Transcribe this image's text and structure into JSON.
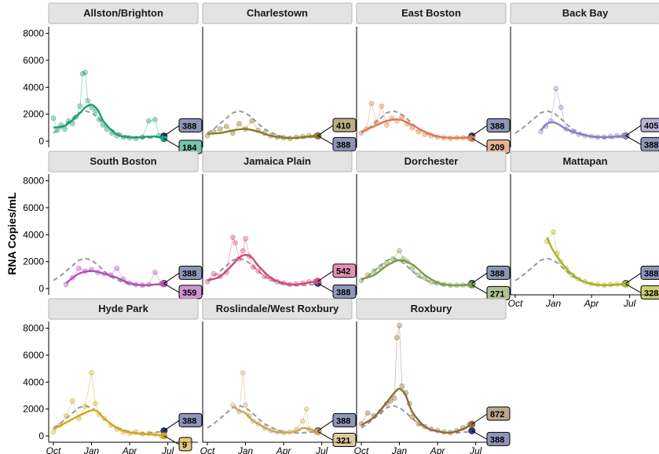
{
  "chart_data": {
    "type": "line",
    "ylabel": "RNA Copies/mL",
    "xlabel": "",
    "x_tick_labels": [
      "Oct",
      "Jan",
      "Apr",
      "Jul"
    ],
    "x_tick_months": [
      0,
      3,
      6,
      9
    ],
    "xlim_months": [
      0,
      11
    ],
    "y_ticks": [
      0,
      2000,
      4000,
      6000,
      8000
    ],
    "ylim": [
      0,
      8500
    ],
    "reference_series": {
      "style": "dashed",
      "color": "#999999",
      "x_months": [
        0,
        0.5,
        1,
        1.5,
        2,
        2.5,
        3,
        3.5,
        4,
        4.5,
        5,
        5.5,
        6,
        6.5,
        7,
        7.5,
        8,
        8.5,
        9
      ],
      "values": [
        600,
        900,
        1300,
        1700,
        2100,
        2250,
        2100,
        1750,
        1300,
        900,
        650,
        450,
        320,
        250,
        220,
        240,
        270,
        320,
        388
      ]
    },
    "panels": [
      {
        "name": "Allston/Brighton",
        "color": "#1b9e77",
        "smooth_x": [
          0,
          1,
          2,
          2.5,
          3,
          3.5,
          4,
          5,
          6,
          7,
          8,
          8.7
        ],
        "smooth_y": [
          1000,
          1200,
          2000,
          2500,
          2700,
          2300,
          1400,
          500,
          280,
          300,
          350,
          184
        ],
        "obs_x": [
          0,
          0.3,
          0.6,
          0.9,
          1.2,
          1.5,
          1.8,
          2.1,
          2.3,
          2.5,
          2.7,
          3,
          3.3,
          3.6,
          3.9,
          4.2,
          4.6,
          5,
          5.5,
          6,
          6.5,
          7,
          7.5,
          8,
          8.3,
          8.7
        ],
        "obs_y": [
          1700,
          800,
          1200,
          900,
          1500,
          1300,
          1800,
          2600,
          5000,
          5100,
          3000,
          2500,
          2200,
          1600,
          1200,
          900,
          600,
          400,
          300,
          250,
          200,
          300,
          1500,
          1600,
          400,
          184
        ],
        "last_value_label": "184",
        "reference_label": "388",
        "end_color": "#1b9e77"
      },
      {
        "name": "Charlestown",
        "color": "#8c7a2a",
        "smooth_x": [
          0,
          1,
          2,
          3,
          4,
          5,
          6,
          7,
          8,
          8.7
        ],
        "smooth_y": [
          550,
          600,
          800,
          900,
          700,
          400,
          250,
          250,
          350,
          410
        ],
        "obs_x": [
          0,
          0.5,
          1,
          1.5,
          2,
          2.5,
          3,
          3.5,
          4,
          4.5,
          5,
          5.5,
          6,
          6.5,
          7,
          7.5,
          8,
          8.5
        ],
        "obs_y": [
          400,
          700,
          900,
          1100,
          600,
          1300,
          900,
          1500,
          800,
          600,
          400,
          300,
          250,
          200,
          300,
          350,
          400,
          410
        ],
        "last_value_label": "410",
        "reference_label": "388",
        "end_color": "#8c7a2a"
      },
      {
        "name": "East Boston",
        "color": "#d97c4c",
        "smooth_x": [
          0,
          1,
          2,
          3,
          4,
          5,
          6,
          7,
          8,
          8.7
        ],
        "smooth_y": [
          700,
          1100,
          1500,
          1600,
          1200,
          700,
          350,
          250,
          250,
          209
        ],
        "obs_x": [
          0,
          0.4,
          0.8,
          1.2,
          1.6,
          2,
          2.4,
          2.8,
          3.2,
          3.6,
          4,
          4.5,
          5,
          5.5,
          6,
          6.5,
          7,
          7.5,
          8,
          8.5
        ],
        "obs_y": [
          600,
          900,
          2800,
          1400,
          2600,
          1200,
          1700,
          1500,
          1800,
          1300,
          1000,
          700,
          500,
          400,
          300,
          250,
          200,
          250,
          250,
          209
        ],
        "last_value_label": "209",
        "reference_label": "388",
        "end_color": "#d97c4c"
      },
      {
        "name": "Back Bay",
        "color": "#8a7fc0",
        "smooth_x": [
          2,
          2.5,
          3,
          3.5,
          4,
          5,
          6,
          7,
          8,
          8.7
        ],
        "smooth_y": [
          800,
          1300,
          1400,
          1200,
          900,
          550,
          350,
          300,
          350,
          405
        ],
        "obs_x": [
          2,
          2.4,
          2.8,
          3.2,
          3.6,
          4,
          4.5,
          5,
          5.5,
          6,
          6.5,
          7,
          7.5,
          8,
          8.5
        ],
        "obs_y": [
          700,
          1100,
          1500,
          3900,
          2500,
          900,
          700,
          500,
          400,
          350,
          300,
          300,
          350,
          400,
          405
        ],
        "last_value_label": "405",
        "reference_label": "388",
        "end_color": "#8a7fc0"
      },
      {
        "name": "South Boston",
        "color": "#b34fb5",
        "smooth_x": [
          1,
          2,
          3,
          4,
          5,
          6,
          7,
          8,
          8.7
        ],
        "smooth_y": [
          400,
          1100,
          1300,
          1100,
          800,
          400,
          250,
          300,
          359
        ],
        "obs_x": [
          1,
          1.5,
          2,
          2.5,
          3,
          3.5,
          4,
          4.5,
          5,
          5.5,
          6,
          6.5,
          7,
          7.5,
          8,
          8.5
        ],
        "obs_y": [
          300,
          800,
          1500,
          1300,
          1400,
          1200,
          1100,
          1000,
          1500,
          700,
          400,
          300,
          250,
          300,
          1200,
          359
        ],
        "last_value_label": "359",
        "reference_label": "388",
        "end_color": "#b34fb5"
      },
      {
        "name": "Jamaica Plain",
        "color": "#d1477f",
        "smooth_x": [
          0,
          1,
          2,
          2.5,
          3,
          3.5,
          4,
          5,
          6,
          7,
          8,
          8.7
        ],
        "smooth_y": [
          600,
          900,
          1800,
          2300,
          2500,
          2300,
          1700,
          800,
          400,
          300,
          450,
          542
        ],
        "obs_x": [
          0,
          0.5,
          1,
          1.5,
          2,
          2.2,
          2.5,
          2.8,
          3,
          3.3,
          3.6,
          4,
          4.5,
          5,
          5.5,
          6,
          6.5,
          7,
          7.5,
          8,
          8.5
        ],
        "obs_y": [
          500,
          1100,
          900,
          1200,
          3800,
          3400,
          2200,
          2800,
          3700,
          2400,
          1600,
          1300,
          900,
          700,
          500,
          400,
          300,
          350,
          400,
          500,
          542
        ],
        "last_value_label": "542",
        "reference_label": "388",
        "end_color": "#d1477f"
      },
      {
        "name": "Dorchester",
        "color": "#7a9a4a",
        "smooth_x": [
          0,
          1,
          2,
          3,
          4,
          5,
          6,
          7,
          8,
          8.7
        ],
        "smooth_y": [
          700,
          1000,
          1700,
          2100,
          1800,
          1000,
          450,
          250,
          250,
          271
        ],
        "obs_x": [
          0,
          0.5,
          1,
          1.5,
          2,
          2.5,
          3,
          3.3,
          3.6,
          4,
          4.5,
          5,
          5.5,
          6,
          6.5,
          7,
          7.5,
          8,
          8.5
        ],
        "obs_y": [
          600,
          1000,
          1300,
          1600,
          1900,
          2200,
          2800,
          2200,
          2000,
          1500,
          1000,
          800,
          500,
          400,
          300,
          250,
          250,
          260,
          271
        ],
        "last_value_label": "271",
        "reference_label": "388",
        "end_color": "#7a9a4a"
      },
      {
        "name": "Mattapan",
        "color": "#a8b320",
        "smooth_x": [
          2.5,
          3,
          4,
          5,
          6,
          7,
          8,
          8.7
        ],
        "smooth_y": [
          3800,
          2800,
          1500,
          700,
          350,
          250,
          300,
          328
        ],
        "obs_x": [
          2.5,
          3,
          3.3,
          3.6,
          4,
          4.5,
          5,
          5.5,
          6,
          6.5,
          7,
          7.5,
          8,
          8.5
        ],
        "obs_y": [
          3500,
          4200,
          2600,
          2000,
          1500,
          1000,
          700,
          500,
          350,
          300,
          250,
          300,
          320,
          328
        ],
        "last_value_label": "328",
        "reference_label": "388",
        "end_color": "#a8b320"
      },
      {
        "name": "Hyde Park",
        "color": "#d4a520",
        "smooth_x": [
          0,
          1,
          2,
          3,
          3.5,
          4,
          5,
          6,
          7,
          8,
          8.7
        ],
        "smooth_y": [
          500,
          1000,
          1500,
          1900,
          1800,
          1300,
          600,
          250,
          150,
          100,
          9
        ],
        "obs_x": [
          0,
          0.5,
          1,
          1.5,
          2,
          2.5,
          3,
          3.3,
          3.6,
          4,
          4.5,
          5,
          5.5,
          6,
          6.5,
          7,
          7.5,
          8,
          8.5
        ],
        "obs_y": [
          300,
          800,
          1500,
          2600,
          1300,
          2200,
          4700,
          2400,
          1600,
          1300,
          800,
          500,
          300,
          200,
          300,
          150,
          200,
          100,
          9
        ],
        "last_value_label": "9",
        "reference_label": "388",
        "end_color": "#d4a520"
      },
      {
        "name": "Roslindale/West Roxbury",
        "color": "#c8a45c",
        "smooth_x": [
          2,
          2.5,
          3,
          3.5,
          4,
          5,
          6,
          7,
          7.5,
          8,
          8.7
        ],
        "smooth_y": [
          2200,
          1900,
          1700,
          1200,
          900,
          400,
          250,
          350,
          600,
          500,
          321
        ],
        "obs_x": [
          2,
          2.5,
          2.8,
          3,
          3.3,
          3.6,
          4,
          4.5,
          5,
          5.5,
          6,
          6.5,
          7,
          7.5,
          7.8,
          8,
          8.5
        ],
        "obs_y": [
          2300,
          1800,
          4700,
          2300,
          1500,
          1100,
          900,
          600,
          400,
          300,
          250,
          300,
          500,
          1100,
          2000,
          500,
          321
        ],
        "last_value_label": "321",
        "reference_label": "388",
        "end_color": "#c8a45c"
      },
      {
        "name": "Roxbury",
        "color": "#8c6d3a",
        "smooth_x": [
          0,
          1,
          2,
          2.5,
          3,
          3.5,
          4,
          5,
          6,
          7,
          8,
          8.7
        ],
        "smooth_y": [
          800,
          1400,
          2500,
          3100,
          3500,
          3000,
          1800,
          700,
          350,
          250,
          500,
          872
        ],
        "obs_x": [
          0,
          0.5,
          1,
          1.5,
          2,
          2.3,
          2.6,
          2.8,
          3,
          3.2,
          3.5,
          3.8,
          4,
          4.5,
          5,
          5.5,
          6,
          6.5,
          7,
          7.5,
          8,
          8.5
        ],
        "obs_y": [
          900,
          1700,
          1500,
          1800,
          2400,
          2600,
          2800,
          7300,
          8200,
          3700,
          3200,
          2400,
          1400,
          900,
          700,
          500,
          400,
          300,
          250,
          400,
          600,
          872
        ],
        "last_value_label": "872",
        "reference_label": "388",
        "end_color": "#8c6d3a"
      }
    ],
    "reference_color": "#2f3a73",
    "reference_badge_fill": "#8e96b8",
    "grid": false,
    "legend": "none"
  }
}
